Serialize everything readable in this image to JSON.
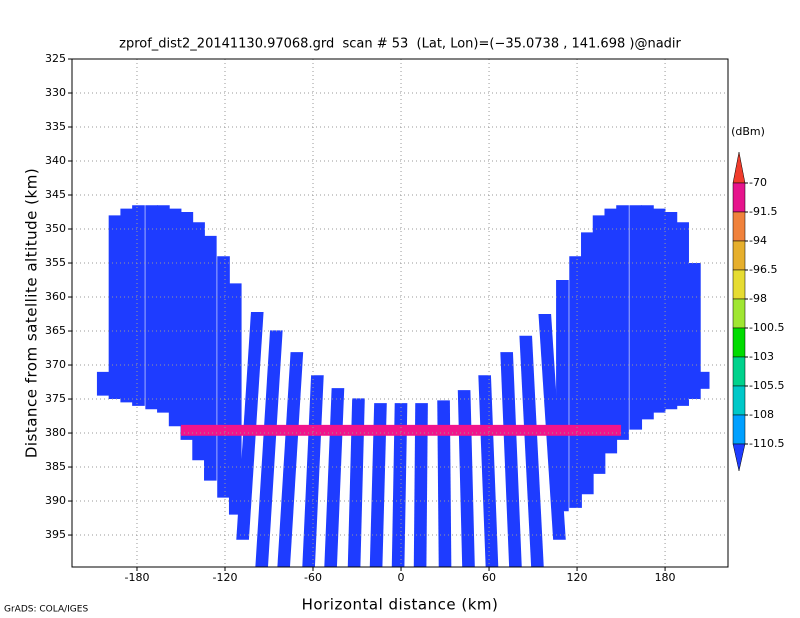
{
  "chart_data": {
    "type": "profile",
    "title": "zprof_dist2_20141130.97068.grd  scan # 53  (Lat, Lon)=(−35.0738 , 141.698 )@nadir",
    "xlabel": "Horizontal distance (km)",
    "ylabel": "Distance from satellite altitude (km)",
    "footer": "GrADS: COLA/IGES",
    "xlim": [
      -224.3,
      222.9
    ],
    "ylim": [
      399.7,
      325
    ],
    "xticks": [
      -180,
      -120,
      -60,
      0,
      60,
      120,
      180
    ],
    "yticks": [
      325,
      330,
      335,
      340,
      345,
      350,
      355,
      360,
      365,
      370,
      375,
      380,
      385,
      390,
      395
    ],
    "grid": true,
    "field_color": "#1e3cff",
    "swaths": [
      {
        "x_top": -203,
        "x_bottom": -203,
        "top": 371,
        "bottom": 374.5
      },
      {
        "x_top": -195,
        "x_bottom": -195,
        "top": 348,
        "bottom": 375
      },
      {
        "x_top": -187,
        "x_bottom": -187,
        "top": 347,
        "bottom": 375.5
      },
      {
        "x_top": -179,
        "x_bottom": -179,
        "top": 346.5,
        "bottom": 376
      },
      {
        "x_top": -170,
        "x_bottom": -170,
        "top": 346.5,
        "bottom": 376.5
      },
      {
        "x_top": -162,
        "x_bottom": -162,
        "top": 346.5,
        "bottom": 377
      },
      {
        "x_top": -154,
        "x_bottom": -154,
        "top": 347,
        "bottom": 379
      },
      {
        "x_top": -146,
        "x_bottom": -146,
        "top": 347.5,
        "bottom": 381
      },
      {
        "x_top": -138,
        "x_bottom": -138,
        "top": 349,
        "bottom": 384
      },
      {
        "x_top": -130,
        "x_bottom": -130,
        "top": 351,
        "bottom": 387
      },
      {
        "x_top": -121,
        "x_bottom": -121,
        "top": 354,
        "bottom": 389.5
      },
      {
        "x_top": -113,
        "x_bottom": -113,
        "top": 358,
        "bottom": 392
      },
      {
        "x_top": -98,
        "x_bottom": -108,
        "top": 362.2,
        "bottom": 395.7
      },
      {
        "x_top": -85,
        "x_bottom": -95,
        "top": 364.9,
        "bottom": 399.7
      },
      {
        "x_top": -71,
        "x_bottom": -80,
        "top": 368.1,
        "bottom": 399.7
      },
      {
        "x_top": -57,
        "x_bottom": -63,
        "top": 371.5,
        "bottom": 399.7
      },
      {
        "x_top": -43,
        "x_bottom": -48,
        "top": 373.4,
        "bottom": 399.7
      },
      {
        "x_top": -29,
        "x_bottom": -32,
        "top": 374.9,
        "bottom": 399.7
      },
      {
        "x_top": -14,
        "x_bottom": -17,
        "top": 375.6,
        "bottom": 399.7
      },
      {
        "x_top": 0,
        "x_bottom": -2,
        "top": 375.6,
        "bottom": 399.7
      },
      {
        "x_top": 14,
        "x_bottom": 13,
        "top": 375.6,
        "bottom": 399.7
      },
      {
        "x_top": 29,
        "x_bottom": 30,
        "top": 375.2,
        "bottom": 399.7
      },
      {
        "x_top": 43,
        "x_bottom": 46,
        "top": 373.7,
        "bottom": 399.7
      },
      {
        "x_top": 57,
        "x_bottom": 62,
        "top": 371.5,
        "bottom": 399.7
      },
      {
        "x_top": 72,
        "x_bottom": 78,
        "top": 368.1,
        "bottom": 399.7
      },
      {
        "x_top": 85,
        "x_bottom": 93,
        "top": 365.7,
        "bottom": 399.7
      },
      {
        "x_top": 98,
        "x_bottom": 108,
        "top": 362.5,
        "bottom": 395.7
      },
      {
        "x_top": 110,
        "x_bottom": 110,
        "top": 357.5,
        "bottom": 391.5
      },
      {
        "x_top": 119,
        "x_bottom": 119,
        "top": 354,
        "bottom": 391
      },
      {
        "x_top": 127,
        "x_bottom": 127,
        "top": 350.5,
        "bottom": 389
      },
      {
        "x_top": 135,
        "x_bottom": 135,
        "top": 348,
        "bottom": 386
      },
      {
        "x_top": 143,
        "x_bottom": 143,
        "top": 347,
        "bottom": 383
      },
      {
        "x_top": 151,
        "x_bottom": 151,
        "top": 346.5,
        "bottom": 381
      },
      {
        "x_top": 160,
        "x_bottom": 160,
        "top": 346.5,
        "bottom": 379.5
      },
      {
        "x_top": 168,
        "x_bottom": 168,
        "top": 346.5,
        "bottom": 378
      },
      {
        "x_top": 176,
        "x_bottom": 176,
        "top": 347,
        "bottom": 377
      },
      {
        "x_top": 184,
        "x_bottom": 184,
        "top": 347.5,
        "bottom": 376.5
      },
      {
        "x_top": 192,
        "x_bottom": 192,
        "top": 349,
        "bottom": 376
      },
      {
        "x_top": 200,
        "x_bottom": 200,
        "top": 355,
        "bottom": 375
      },
      {
        "x_top": 206,
        "x_bottom": 206,
        "top": 371,
        "bottom": 373.5
      }
    ],
    "surface": {
      "x": [
        -150,
        150
      ],
      "top": 378.8,
      "bottom": 380.4,
      "color": "#f0148c"
    },
    "colorbar": {
      "unit": "(dBm)",
      "levels": [
        -70,
        -91.5,
        -94,
        -96.5,
        -98,
        -100.5,
        -103,
        -105.5,
        -108,
        -110.5
      ],
      "colors": [
        "#f03c2c",
        "#e6148c",
        "#f0823c",
        "#e6af2d",
        "#e6dc32",
        "#a0e632",
        "#00dc00",
        "#00d28c",
        "#00c8c8",
        "#00a0ff",
        "#1e3cff"
      ]
    }
  }
}
